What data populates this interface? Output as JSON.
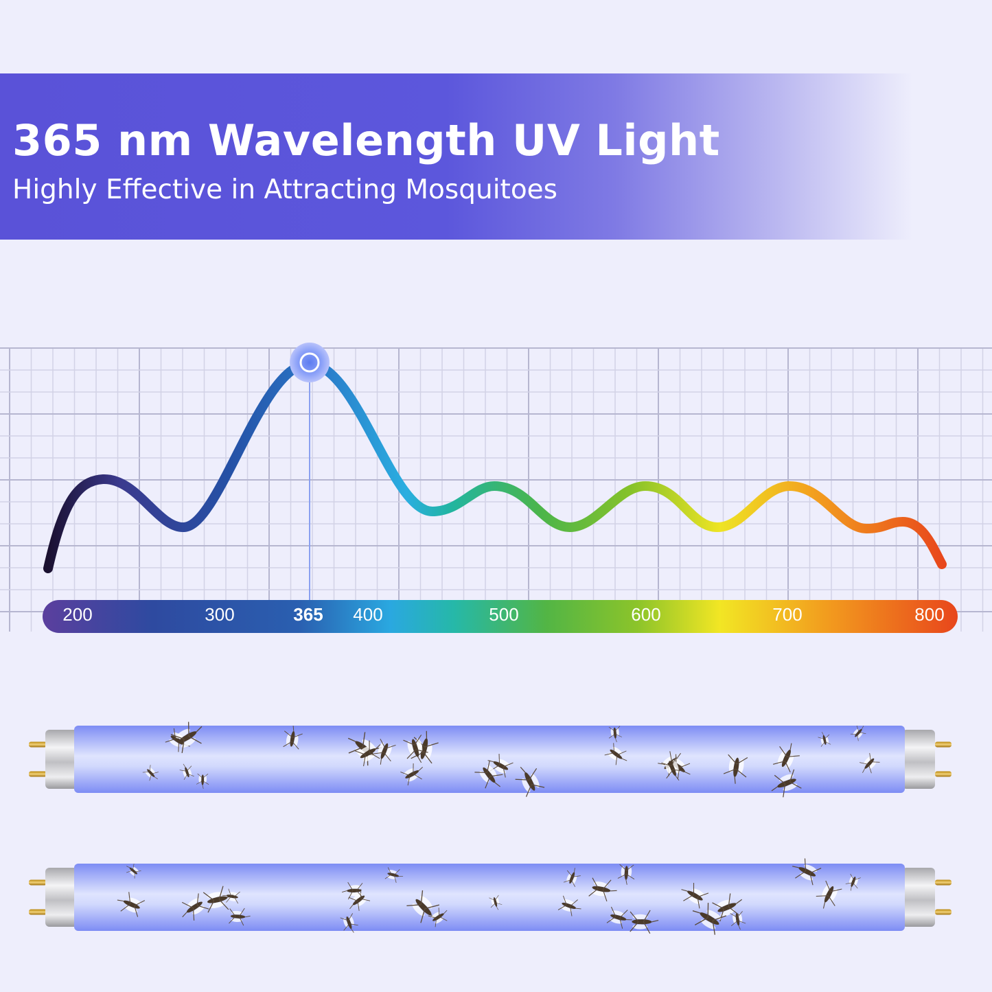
{
  "header": {
    "title": "365 nm Wavelength UV Light",
    "subtitle": "Highly Effective in Attracting Mosquitoes",
    "band_color": "#5a52d8"
  },
  "spectrum": {
    "highlight_wavelength": "365",
    "ticks": [
      "200",
      "300",
      "365",
      "400",
      "500",
      "600",
      "700",
      "800"
    ],
    "bar_colors": [
      "#5b3f9e",
      "#2a4ea2",
      "#2aa8e0",
      "#6cb82e",
      "#f2e624",
      "#f29a1e",
      "#e8461c"
    ]
  },
  "tubes": {
    "count": 2,
    "glass_color": "#8f9cf6"
  }
}
